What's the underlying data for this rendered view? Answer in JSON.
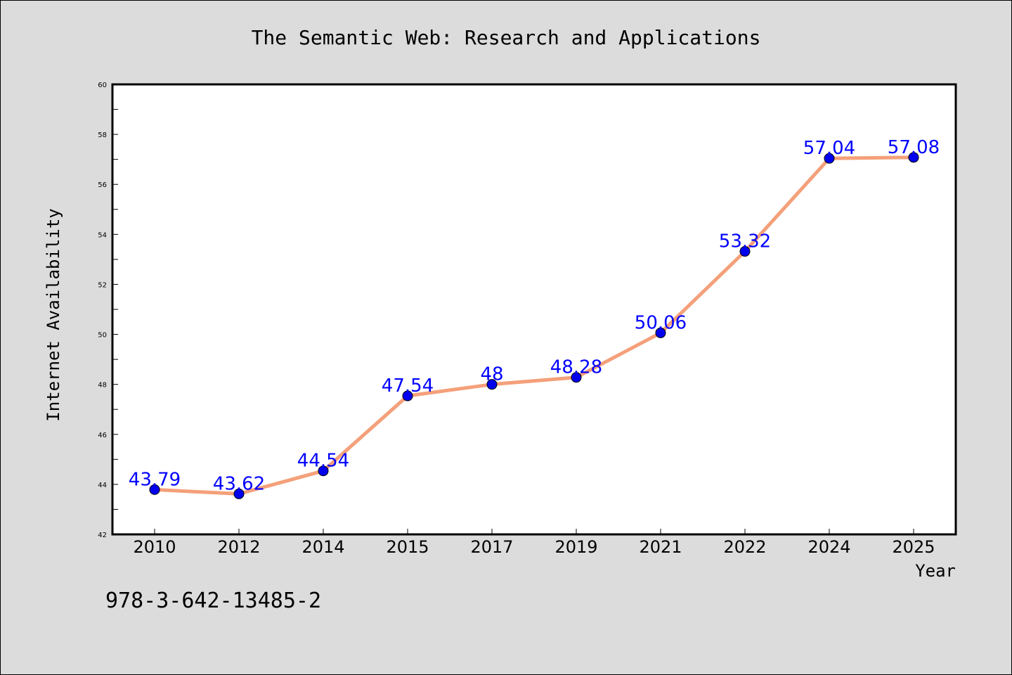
{
  "chart_data": {
    "type": "line",
    "title": "The Semantic Web: Research and Applications",
    "xlabel": "Year",
    "ylabel": "Internet Availability",
    "categories": [
      "2010",
      "2012",
      "2014",
      "2015",
      "2017",
      "2019",
      "2021",
      "2022",
      "2024",
      "2025"
    ],
    "series": [
      {
        "values": [
          43.79,
          43.62,
          44.54,
          47.54,
          48,
          48.28,
          50.06,
          53.32,
          57.04,
          57.08
        ],
        "data_labels": [
          "43.79",
          "43.62",
          "44.54",
          "47.54",
          "48",
          "48.28",
          "50.06",
          "53.32",
          "57.04",
          "57.08"
        ],
        "line_color": "#f4a07a",
        "marker_color": "#0000ee"
      }
    ],
    "ylim": [
      42,
      60
    ],
    "yticks": [
      "42",
      "44",
      "46",
      "48",
      "50",
      "52",
      "54",
      "56",
      "58",
      "60"
    ],
    "grid": false,
    "legend": "none",
    "annotation": "978-3-642-13485-2",
    "label_color": "#0000ff"
  }
}
